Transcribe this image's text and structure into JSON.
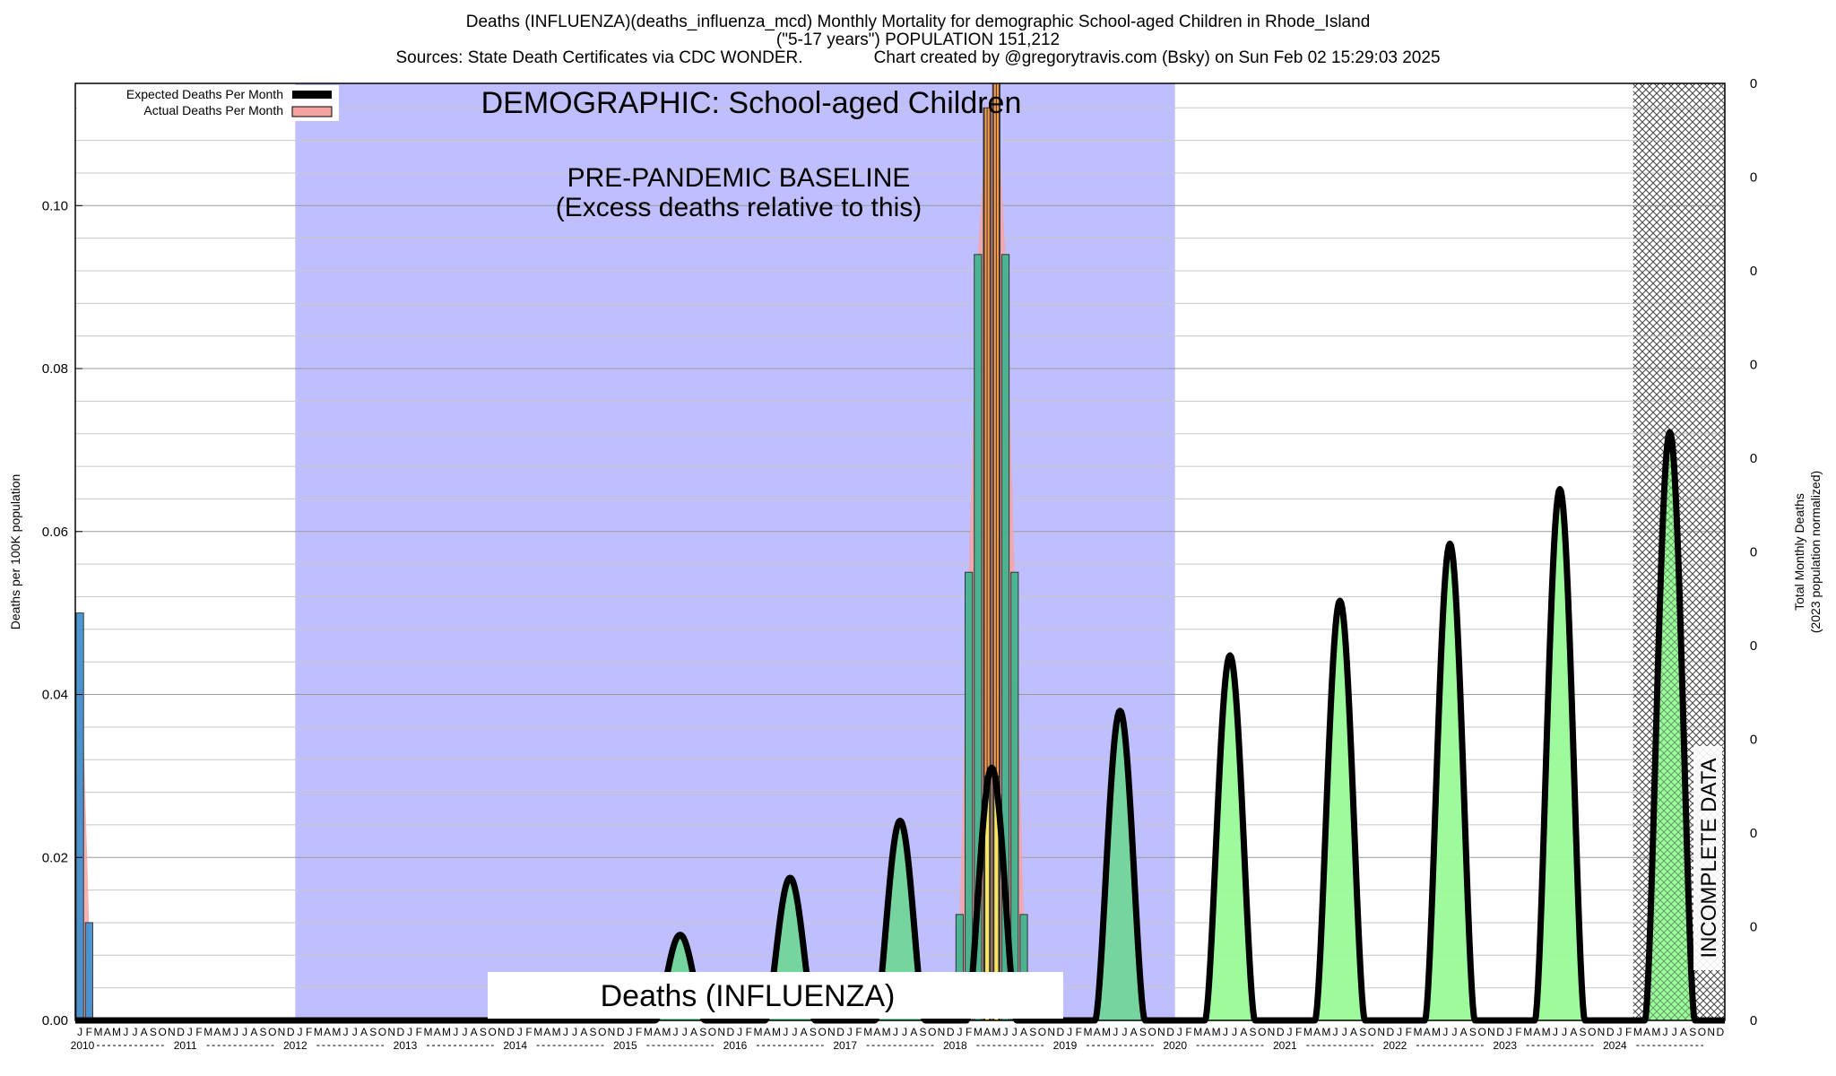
{
  "header": {
    "line1": "Deaths (INFLUENZA)(deaths_influenza_mcd) Monthly Mortality for demographic School-aged Children in Rhode_Island",
    "line2": "(\"5-17 years\") POPULATION 151,212",
    "line3": "Sources: State Death Certificates via CDC WONDER.               Chart created by @gregorytravis.com (Bsky) on Sun Feb 02 15:29:03 2025"
  },
  "chart_data": {
    "type": "bar",
    "title": "Deaths (INFLUENZA)(deaths_influenza_mcd) Monthly Mortality for demographic School-aged Children in Rhode_Island",
    "ylabel": "Deaths per 100K population",
    "y2label_line1": "Total Monthly Deaths",
    "y2label_line2": "(2023 population normalized)",
    "ylim": [
      0,
      0.115
    ],
    "y_ticks": [
      0.0,
      0.02,
      0.04,
      0.06,
      0.08,
      0.1
    ],
    "y_tick_labels": [
      "0.00",
      "0.02",
      "0.04",
      "0.06",
      "0.08",
      "0.10"
    ],
    "y2_tick_labels": [
      "0",
      "0",
      "0",
      "0",
      "0",
      "0",
      "0",
      "0",
      "0",
      "0",
      "0"
    ],
    "x_start": "2010-01",
    "x_end": "2024-12",
    "years": [
      "2010",
      "2011",
      "2012",
      "2013",
      "2014",
      "2015",
      "2016",
      "2017",
      "2018",
      "2019",
      "2020",
      "2021",
      "2022",
      "2023",
      "2024"
    ],
    "month_letters": [
      "J",
      "F",
      "M",
      "A",
      "M",
      "J",
      "J",
      "A",
      "S",
      "O",
      "N",
      "D"
    ],
    "legend": {
      "expected": "Expected Deaths Per Month",
      "actual": "Actual Deaths Per Month",
      "placement": "top-left"
    },
    "annotations": {
      "demographic": "DEMOGRAPHIC: School-aged Children",
      "baseline_line1": "PRE-PANDEMIC BASELINE",
      "baseline_line2": "(Excess deaths relative to this)",
      "cause": "Deaths (INFLUENZA)",
      "incomplete": "INCOMPLETE DATA"
    },
    "baseline_period": [
      "2012-01",
      "2019-12"
    ],
    "incomplete_period": [
      "2024-03",
      "2024-12"
    ],
    "actual_bars": [
      {
        "month": "2010-01",
        "value": 0.05
      },
      {
        "month": "2010-02",
        "value": 0.012
      },
      {
        "month": "2018-01",
        "value": 0.013
      },
      {
        "month": "2018-02",
        "value": 0.055
      },
      {
        "month": "2018-03",
        "value": 0.094
      },
      {
        "month": "2018-04",
        "value": 0.112
      },
      {
        "month": "2018-05",
        "value": 0.115
      },
      {
        "month": "2018-06",
        "value": 0.094
      },
      {
        "month": "2018-07",
        "value": 0.055
      },
      {
        "month": "2018-08",
        "value": 0.013
      }
    ],
    "expected_peaks": [
      {
        "year": "2015",
        "peak_month": "2015-07",
        "value": 0.0105
      },
      {
        "year": "2016",
        "peak_month": "2016-07",
        "value": 0.0175
      },
      {
        "year": "2017",
        "peak_month": "2017-07",
        "value": 0.0245
      },
      {
        "year": "2018",
        "peak_month": "2018-05",
        "value": 0.031
      },
      {
        "year": "2019",
        "peak_month": "2019-07",
        "value": 0.038
      },
      {
        "year": "2020",
        "peak_month": "2020-07",
        "value": 0.0448
      },
      {
        "year": "2021",
        "peak_month": "2021-07",
        "value": 0.0515
      },
      {
        "year": "2022",
        "peak_month": "2022-07",
        "value": 0.0585
      },
      {
        "year": "2023",
        "peak_month": "2023-07",
        "value": 0.0652
      },
      {
        "year": "2024",
        "peak_month": "2024-07",
        "value": 0.0722
      }
    ],
    "grid": true,
    "colors": {
      "baseline_band": "#bfbfff",
      "expected_line": "#000000",
      "fill_baseline": "#72d69a",
      "fill_post": "#98fb98",
      "actual_area": "#f4a3a3",
      "bar_2010": "#3a8fd0",
      "bar_low": "#3cb48c",
      "bar_mid": "#ff9a3c",
      "bar_peak": "#f5e663"
    }
  }
}
